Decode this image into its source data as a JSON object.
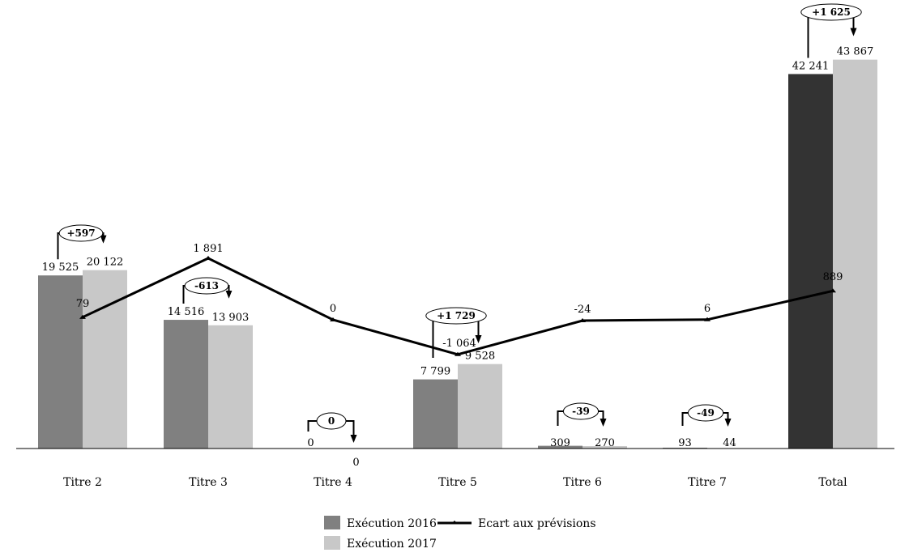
{
  "chart_data": {
    "type": "bar",
    "categories": [
      "Titre 2",
      "Titre 3",
      "Titre 4",
      "Titre 5",
      "Titre 6",
      "Titre 7",
      "Total"
    ],
    "series": [
      {
        "name": "Exécution 2016",
        "values": [
          19525,
          14516,
          0,
          7799,
          309,
          93,
          42241
        ],
        "labels": [
          "19 525",
          "14 516",
          "0",
          "7 799",
          "309",
          "93",
          "42 241"
        ]
      },
      {
        "name": "Exécution 2017",
        "values": [
          20122,
          13903,
          0,
          9528,
          270,
          44,
          43867
        ],
        "labels": [
          "20 122",
          "13 903",
          "0",
          "9 528",
          "270",
          "44",
          "43 867"
        ]
      }
    ],
    "line": {
      "name": "Ecart aux prévisions",
      "values": [
        79,
        1891,
        0,
        -1064,
        -24,
        6,
        889
      ],
      "labels": [
        "79",
        "1 891",
        "0",
        "-1 064",
        "-24",
        "6",
        "889"
      ]
    },
    "variations": [
      "+597",
      "-613",
      "0",
      "+1 729",
      "-39",
      "-49",
      "+1 625"
    ],
    "colors": {
      "exec2016": "#808080",
      "exec2016_total": "#333333",
      "exec2017": "#c8c8c8",
      "line": "#000000"
    },
    "legend_position": "bottom-center",
    "grid": false
  }
}
